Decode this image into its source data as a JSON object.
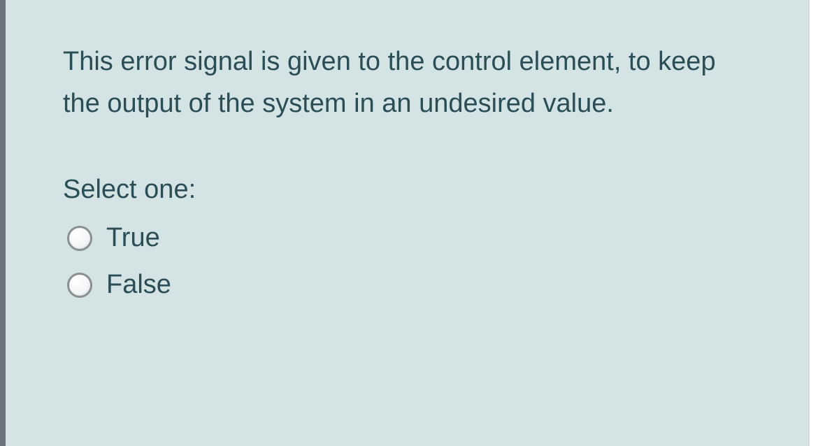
{
  "question": {
    "text": "This error signal is given to the control element, to keep the output of the system in an undesired value.",
    "prompt": "Select one:",
    "options": [
      {
        "label": "True"
      },
      {
        "label": "False"
      }
    ]
  },
  "colors": {
    "card_background": "#d4e4e4",
    "text_color": "#2a4d56",
    "left_bar": "#6c757d",
    "radio_border": "#8a8f92"
  }
}
